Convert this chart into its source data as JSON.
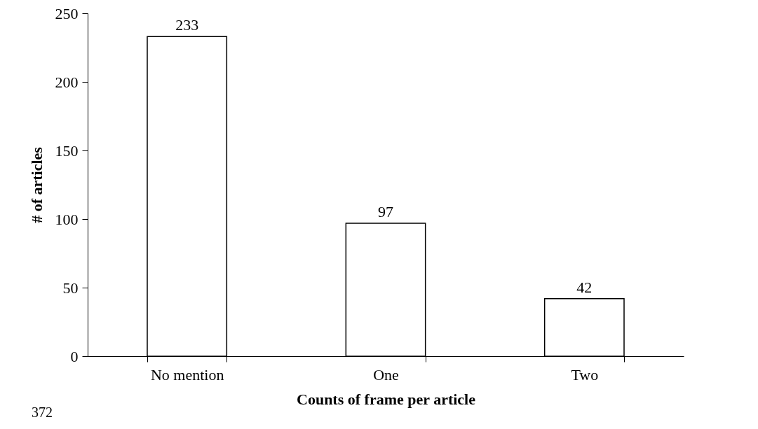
{
  "chart_data": {
    "type": "bar",
    "xlabel": "Counts of frame per article",
    "ylabel": "# of articles",
    "categories": [
      "No mention",
      "One",
      "Two"
    ],
    "values": [
      233,
      97,
      42
    ],
    "color": "#ffffff",
    "ylim": [
      0,
      250
    ],
    "yticks": [
      0,
      50,
      100,
      150,
      200,
      250
    ],
    "grid": false,
    "data_labels": true,
    "annotations": [
      "372"
    ]
  }
}
